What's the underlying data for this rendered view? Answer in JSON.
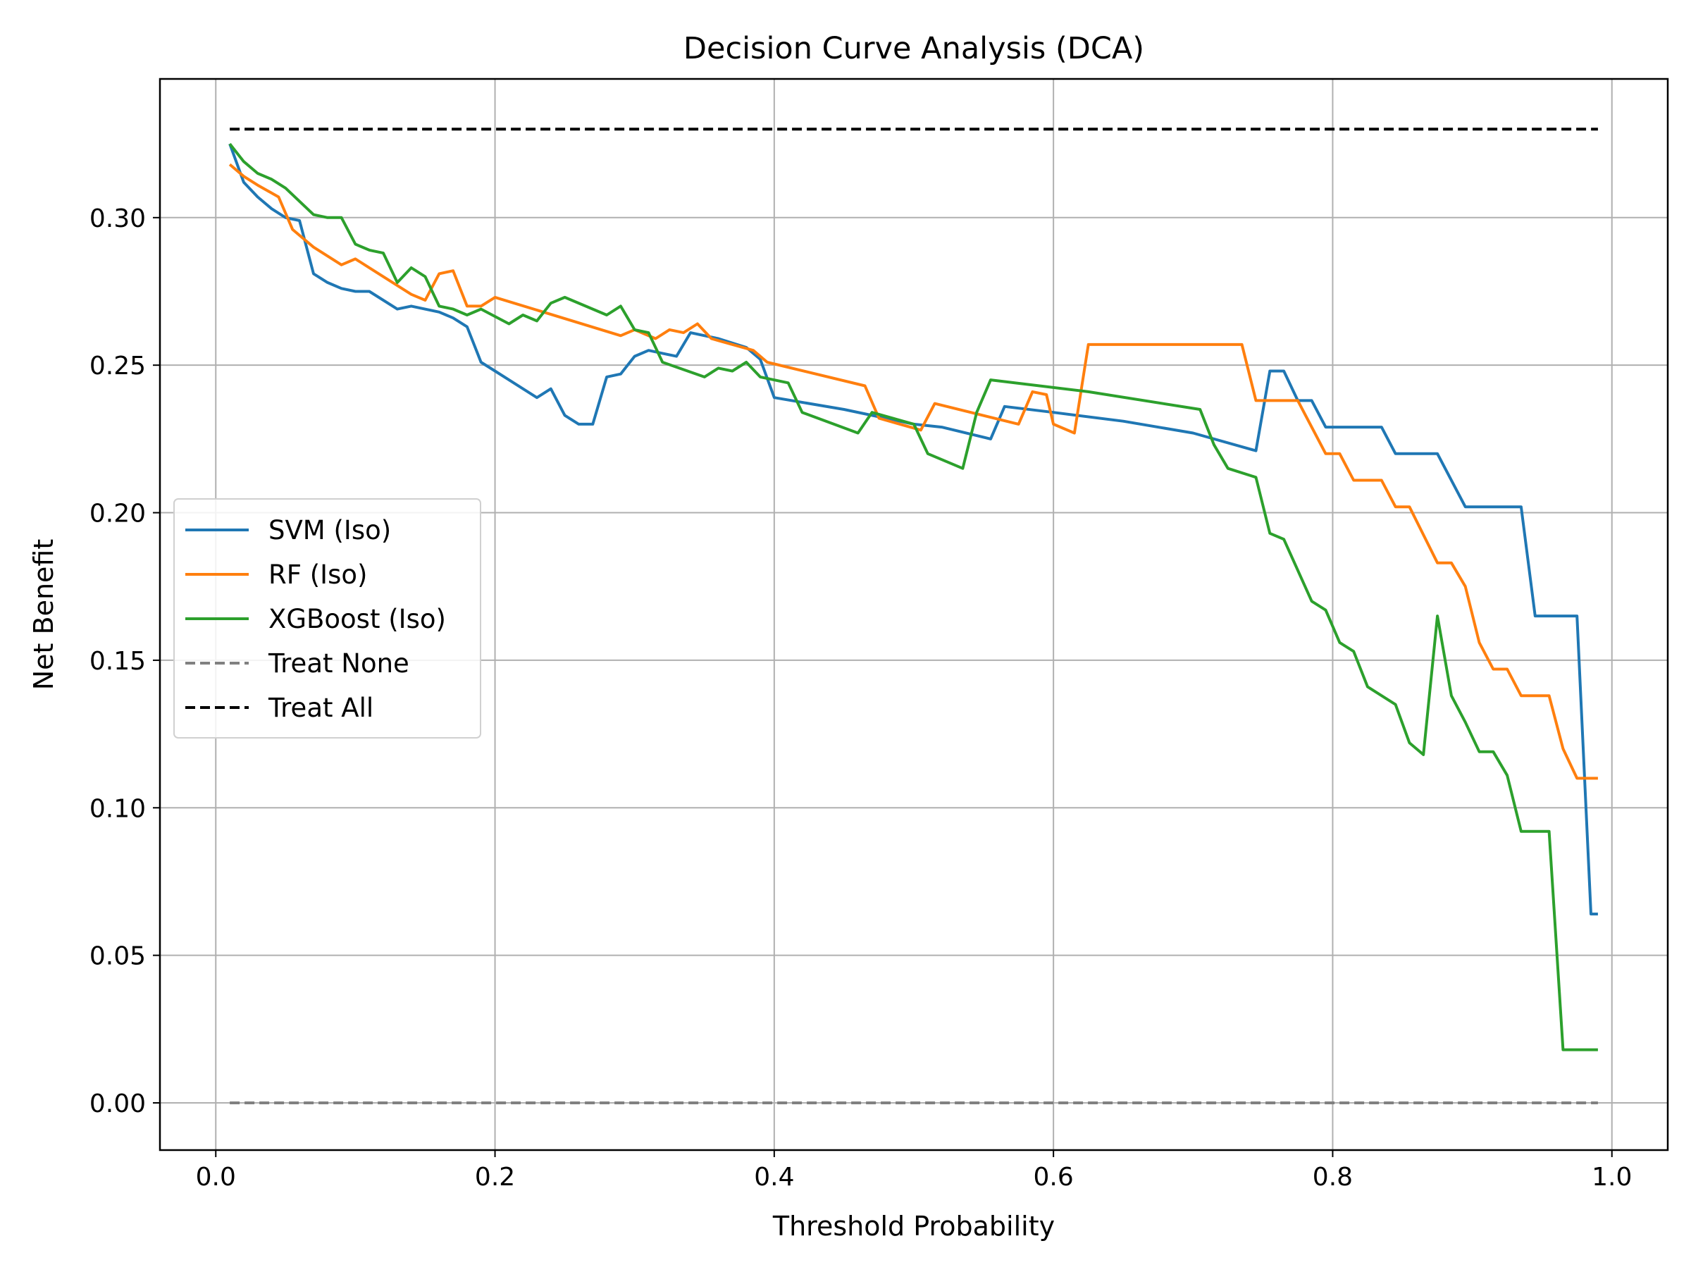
{
  "chart_data": {
    "type": "line",
    "title": "Decision Curve Analysis (DCA)",
    "xlabel": "Threshold Probability",
    "ylabel": "Net Benefit",
    "xlim": [
      -0.04,
      1.04
    ],
    "ylim": [
      -0.016,
      0.347
    ],
    "xticks": [
      0.0,
      0.2,
      0.4,
      0.6,
      0.8,
      1.0
    ],
    "xtick_labels": [
      "0.0",
      "0.2",
      "0.4",
      "0.6",
      "0.8",
      "1.0"
    ],
    "yticks": [
      0.0,
      0.05,
      0.1,
      0.15,
      0.2,
      0.25,
      0.3
    ],
    "ytick_labels": [
      "0.00",
      "0.05",
      "0.10",
      "0.15",
      "0.20",
      "0.25",
      "0.30"
    ],
    "grid": true,
    "legend_position": "center-left",
    "series": [
      {
        "name": "SVM (Iso)",
        "color": "#1f77b4",
        "dash": "solid",
        "points": [
          [
            0.01,
            0.325
          ],
          [
            0.02,
            0.312
          ],
          [
            0.03,
            0.307
          ],
          [
            0.04,
            0.303
          ],
          [
            0.05,
            0.3
          ],
          [
            0.06,
            0.299
          ],
          [
            0.07,
            0.281
          ],
          [
            0.08,
            0.278
          ],
          [
            0.09,
            0.276
          ],
          [
            0.1,
            0.275
          ],
          [
            0.11,
            0.275
          ],
          [
            0.13,
            0.269
          ],
          [
            0.14,
            0.27
          ],
          [
            0.16,
            0.268
          ],
          [
            0.17,
            0.266
          ],
          [
            0.18,
            0.263
          ],
          [
            0.19,
            0.251
          ],
          [
            0.2,
            0.248
          ],
          [
            0.21,
            0.245
          ],
          [
            0.23,
            0.239
          ],
          [
            0.24,
            0.242
          ],
          [
            0.25,
            0.233
          ],
          [
            0.26,
            0.23
          ],
          [
            0.27,
            0.23
          ],
          [
            0.28,
            0.246
          ],
          [
            0.29,
            0.247
          ],
          [
            0.3,
            0.253
          ],
          [
            0.31,
            0.255
          ],
          [
            0.32,
            0.254
          ],
          [
            0.33,
            0.253
          ],
          [
            0.34,
            0.261
          ],
          [
            0.36,
            0.259
          ],
          [
            0.38,
            0.256
          ],
          [
            0.39,
            0.252
          ],
          [
            0.4,
            0.239
          ],
          [
            0.45,
            0.235
          ],
          [
            0.5,
            0.23
          ],
          [
            0.52,
            0.229
          ],
          [
            0.555,
            0.225
          ],
          [
            0.565,
            0.236
          ],
          [
            0.6,
            0.234
          ],
          [
            0.65,
            0.231
          ],
          [
            0.7,
            0.227
          ],
          [
            0.745,
            0.221
          ],
          [
            0.755,
            0.248
          ],
          [
            0.765,
            0.248
          ],
          [
            0.775,
            0.238
          ],
          [
            0.785,
            0.238
          ],
          [
            0.795,
            0.229
          ],
          [
            0.835,
            0.229
          ],
          [
            0.845,
            0.22
          ],
          [
            0.875,
            0.22
          ],
          [
            0.895,
            0.202
          ],
          [
            0.935,
            0.202
          ],
          [
            0.945,
            0.165
          ],
          [
            0.975,
            0.165
          ],
          [
            0.985,
            0.064
          ],
          [
            0.99,
            0.064
          ]
        ]
      },
      {
        "name": "RF (Iso)",
        "color": "#ff7f0e",
        "dash": "solid",
        "points": [
          [
            0.01,
            0.318
          ],
          [
            0.02,
            0.314
          ],
          [
            0.03,
            0.311
          ],
          [
            0.045,
            0.307
          ],
          [
            0.055,
            0.296
          ],
          [
            0.07,
            0.29
          ],
          [
            0.09,
            0.284
          ],
          [
            0.1,
            0.286
          ],
          [
            0.12,
            0.28
          ],
          [
            0.14,
            0.274
          ],
          [
            0.15,
            0.272
          ],
          [
            0.16,
            0.281
          ],
          [
            0.17,
            0.282
          ],
          [
            0.18,
            0.27
          ],
          [
            0.19,
            0.27
          ],
          [
            0.2,
            0.273
          ],
          [
            0.29,
            0.26
          ],
          [
            0.3,
            0.262
          ],
          [
            0.315,
            0.259
          ],
          [
            0.325,
            0.262
          ],
          [
            0.335,
            0.261
          ],
          [
            0.345,
            0.264
          ],
          [
            0.355,
            0.259
          ],
          [
            0.385,
            0.255
          ],
          [
            0.395,
            0.251
          ],
          [
            0.465,
            0.243
          ],
          [
            0.475,
            0.232
          ],
          [
            0.505,
            0.228
          ],
          [
            0.515,
            0.237
          ],
          [
            0.575,
            0.23
          ],
          [
            0.585,
            0.241
          ],
          [
            0.595,
            0.24
          ],
          [
            0.6,
            0.23
          ],
          [
            0.615,
            0.227
          ],
          [
            0.625,
            0.257
          ],
          [
            0.735,
            0.257
          ],
          [
            0.745,
            0.238
          ],
          [
            0.775,
            0.238
          ],
          [
            0.795,
            0.22
          ],
          [
            0.805,
            0.22
          ],
          [
            0.815,
            0.211
          ],
          [
            0.835,
            0.211
          ],
          [
            0.845,
            0.202
          ],
          [
            0.855,
            0.202
          ],
          [
            0.875,
            0.183
          ],
          [
            0.885,
            0.183
          ],
          [
            0.895,
            0.175
          ],
          [
            0.905,
            0.156
          ],
          [
            0.915,
            0.147
          ],
          [
            0.925,
            0.147
          ],
          [
            0.935,
            0.138
          ],
          [
            0.955,
            0.138
          ],
          [
            0.965,
            0.12
          ],
          [
            0.975,
            0.11
          ],
          [
            0.99,
            0.11
          ]
        ]
      },
      {
        "name": "XGBoost (Iso)",
        "color": "#2ca02c",
        "dash": "solid",
        "points": [
          [
            0.01,
            0.325
          ],
          [
            0.02,
            0.319
          ],
          [
            0.03,
            0.315
          ],
          [
            0.04,
            0.313
          ],
          [
            0.05,
            0.31
          ],
          [
            0.07,
            0.301
          ],
          [
            0.08,
            0.3
          ],
          [
            0.09,
            0.3
          ],
          [
            0.1,
            0.291
          ],
          [
            0.11,
            0.289
          ],
          [
            0.12,
            0.288
          ],
          [
            0.13,
            0.278
          ],
          [
            0.14,
            0.283
          ],
          [
            0.15,
            0.28
          ],
          [
            0.16,
            0.27
          ],
          [
            0.17,
            0.269
          ],
          [
            0.18,
            0.267
          ],
          [
            0.19,
            0.269
          ],
          [
            0.21,
            0.264
          ],
          [
            0.22,
            0.267
          ],
          [
            0.23,
            0.265
          ],
          [
            0.24,
            0.271
          ],
          [
            0.25,
            0.273
          ],
          [
            0.28,
            0.267
          ],
          [
            0.29,
            0.27
          ],
          [
            0.3,
            0.262
          ],
          [
            0.31,
            0.261
          ],
          [
            0.32,
            0.251
          ],
          [
            0.35,
            0.246
          ],
          [
            0.36,
            0.249
          ],
          [
            0.37,
            0.248
          ],
          [
            0.38,
            0.251
          ],
          [
            0.39,
            0.246
          ],
          [
            0.41,
            0.244
          ],
          [
            0.42,
            0.234
          ],
          [
            0.46,
            0.227
          ],
          [
            0.47,
            0.234
          ],
          [
            0.5,
            0.23
          ],
          [
            0.51,
            0.22
          ],
          [
            0.535,
            0.215
          ],
          [
            0.545,
            0.234
          ],
          [
            0.555,
            0.245
          ],
          [
            0.625,
            0.241
          ],
          [
            0.705,
            0.235
          ],
          [
            0.715,
            0.223
          ],
          [
            0.725,
            0.215
          ],
          [
            0.745,
            0.212
          ],
          [
            0.755,
            0.193
          ],
          [
            0.765,
            0.191
          ],
          [
            0.785,
            0.17
          ],
          [
            0.795,
            0.167
          ],
          [
            0.805,
            0.156
          ],
          [
            0.815,
            0.153
          ],
          [
            0.825,
            0.141
          ],
          [
            0.845,
            0.135
          ],
          [
            0.855,
            0.122
          ],
          [
            0.865,
            0.118
          ],
          [
            0.875,
            0.165
          ],
          [
            0.885,
            0.138
          ],
          [
            0.895,
            0.129
          ],
          [
            0.905,
            0.119
          ],
          [
            0.915,
            0.119
          ],
          [
            0.925,
            0.111
          ],
          [
            0.935,
            0.092
          ],
          [
            0.955,
            0.092
          ],
          [
            0.965,
            0.018
          ],
          [
            0.99,
            0.018
          ]
        ]
      },
      {
        "name": "Treat None",
        "color": "#808080",
        "dash": "dashed",
        "points": [
          [
            0.01,
            0.0
          ],
          [
            0.99,
            0.0
          ]
        ]
      },
      {
        "name": "Treat All",
        "color": "#000000",
        "dash": "dashed",
        "points": [
          [
            0.01,
            0.33
          ],
          [
            0.99,
            0.33
          ]
        ]
      }
    ]
  }
}
